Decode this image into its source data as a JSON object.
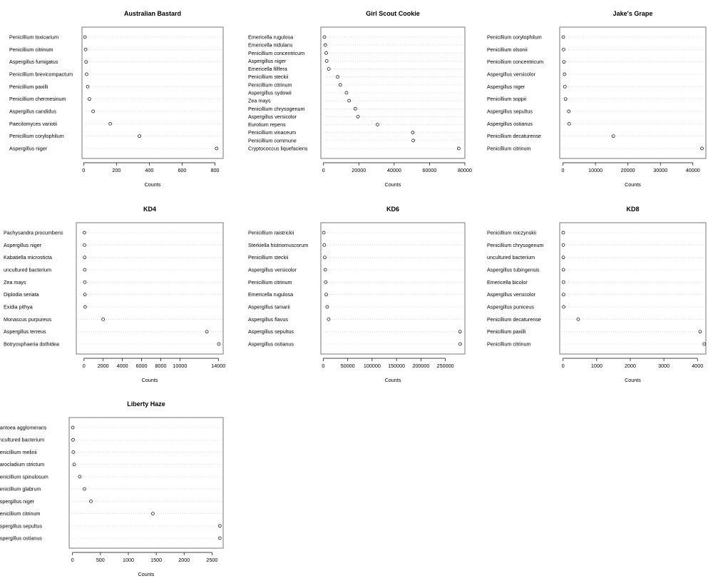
{
  "chart_data": [
    {
      "type": "scatter",
      "title": "Australian Bastard",
      "xlabel": "Counts",
      "ylabel": "",
      "xlim": [
        -10,
        850
      ],
      "xticks": [
        0,
        200,
        400,
        600,
        800
      ],
      "xtick_labels": [
        "0",
        "200",
        "400",
        "600",
        "800"
      ],
      "grid": "horizontal dotted",
      "categories": [
        "Penicillium toxicarium",
        "Penicillium citrinum",
        "Aspergillus fumigatus",
        "Penicillium brevicompactum",
        "Penicillium paxilli",
        "Penicillium chermesinum",
        "Aspergillus candidus",
        "Paecilomyces variotii",
        "Penicillium corylophilum",
        "Aspergillus niger"
      ],
      "values": [
        8,
        12,
        15,
        18,
        25,
        35,
        58,
        162,
        340,
        810
      ]
    },
    {
      "type": "scatter",
      "title": "Girl Scout Cookie",
      "xlabel": "Counts",
      "ylabel": "",
      "xlim": [
        -1500,
        80000
      ],
      "xticks": [
        0,
        20000,
        40000,
        60000,
        80000
      ],
      "xtick_labels": [
        "0",
        "20000",
        "40000",
        "60000",
        "80000"
      ],
      "grid": "horizontal dotted",
      "categories": [
        "Emericella rugulosa",
        "Emericella nidulans",
        "Penicillium concentricum",
        "Aspergillus niger",
        "Emericella fillfera",
        "Penicillium steckii",
        "Penicillium citrinum",
        "Aspergillus sydowii",
        "Zea mays",
        "Penicillium chrysogenum",
        "Aspergillus versicolor",
        "Eurotium repens",
        "Penicillium vinaceum",
        "Penicillium commune",
        "Cryptococcus liquefaciens"
      ],
      "values": [
        500,
        1000,
        1500,
        1800,
        3000,
        8000,
        9500,
        13000,
        14500,
        18000,
        19500,
        30500,
        50500,
        50800,
        76500
      ]
    },
    {
      "type": "scatter",
      "title": "Jake's Grape",
      "xlabel": "Counts",
      "ylabel": "",
      "xlim": [
        -1000,
        44000
      ],
      "xticks": [
        0,
        10000,
        20000,
        30000,
        40000
      ],
      "xtick_labels": [
        "0",
        "10000",
        "20000",
        "30000",
        "40000"
      ],
      "grid": "horizontal dotted",
      "categories": [
        "Penicillium corylophilum",
        "Penicillium olsonii",
        "Penicillium concentricum",
        "Aspergillus versicolor",
        "Aspergillus niger",
        "Penicillium soppii",
        "Aspergillus sepultus",
        "Aspergillus ostianus",
        "Penicillium decaturense",
        "Penicillium citrinum"
      ],
      "values": [
        100,
        200,
        300,
        500,
        600,
        800,
        1800,
        1900,
        15500,
        42800
      ]
    },
    {
      "type": "scatter",
      "title": "KD4",
      "xlabel": "Counts",
      "ylabel": "",
      "xlim": [
        -800,
        14500
      ],
      "xticks": [
        0,
        2000,
        4000,
        6000,
        8000,
        10000,
        14000
      ],
      "xtick_labels": [
        "0",
        "2000",
        "4000",
        "6000",
        "8000",
        "10000",
        "14000"
      ],
      "grid": "horizontal dotted",
      "categories": [
        "Pachysandra procumbens",
        "Aspergillus niger",
        "Kabatiella microsticta",
        "uncultured bacterium",
        "Zea mays",
        "Diplodia seriata",
        "Exidia pithya",
        "Monascus purpureus",
        "Aspergillus terreus",
        "Botryosphaeria dothidea"
      ],
      "values": [
        50,
        60,
        70,
        80,
        90,
        100,
        120,
        2000,
        12800,
        14050
      ]
    },
    {
      "type": "scatter",
      "title": "KD6",
      "xlabel": "Counts",
      "ylabel": "",
      "xlim": [
        -5000,
        290000
      ],
      "xticks": [
        0,
        50000,
        100000,
        150000,
        200000,
        250000
      ],
      "xtick_labels": [
        "0",
        "50000",
        "100000",
        "150000",
        "200000",
        "250000"
      ],
      "grid": "horizontal dotted",
      "categories": [
        "Penicillium raistrickii",
        "Sterkiella histriomuscorum",
        "Penicillium steckii",
        "Aspergillus versicolor",
        "Penicillium citrinum",
        "Emericella rugulosa",
        "Aspergillus tamarii",
        "Aspergillus flavus",
        "Aspergillus sepultus",
        "Aspergillus ostianus"
      ],
      "values": [
        1000,
        2000,
        3000,
        4000,
        5000,
        6000,
        8000,
        11000,
        280000,
        280500
      ]
    },
    {
      "type": "scatter",
      "title": "KD8",
      "xlabel": "Counts",
      "ylabel": "",
      "xlim": [
        -100,
        4250
      ],
      "xticks": [
        0,
        1000,
        2000,
        3000,
        4000
      ],
      "xtick_labels": [
        "0",
        "1000",
        "2000",
        "3000",
        "4000"
      ],
      "grid": "horizontal dotted",
      "categories": [
        "Penicillium miczynskii",
        "Penicillium chrysogenum",
        "uncultured bacterium",
        "Aspergillus tubingensis",
        "Emericella bicolor",
        "Aspergillus versicolor",
        "Aspergillus puniceus",
        "Penicillium decaturense",
        "Penicillium paxilli",
        "Penicillium citrinum"
      ],
      "values": [
        5,
        6,
        8,
        10,
        12,
        15,
        20,
        450,
        4080,
        4200
      ]
    },
    {
      "type": "scatter",
      "title": "Liberty Haze",
      "xlabel": "Counts",
      "ylabel": "",
      "xlim": [
        -60,
        2700
      ],
      "xticks": [
        0,
        500,
        1000,
        1500,
        2000,
        2500
      ],
      "xtick_labels": [
        "0",
        "500",
        "1000",
        "1500",
        "2000",
        "2500"
      ],
      "grid": "horizontal dotted",
      "categories": [
        "Pantoea agglomerans",
        "uncultured bacterium",
        "Penicillium melinii",
        "Sarocladium strictum",
        "Penicillium spinulosum",
        "Penicillium glabrum",
        "Aspergillus niger",
        "Penicillium citrinum",
        "Aspergillus sepultus",
        "Aspergillus ostianus"
      ],
      "values": [
        5,
        10,
        15,
        30,
        130,
        215,
        330,
        1440,
        2640,
        2640
      ]
    }
  ]
}
